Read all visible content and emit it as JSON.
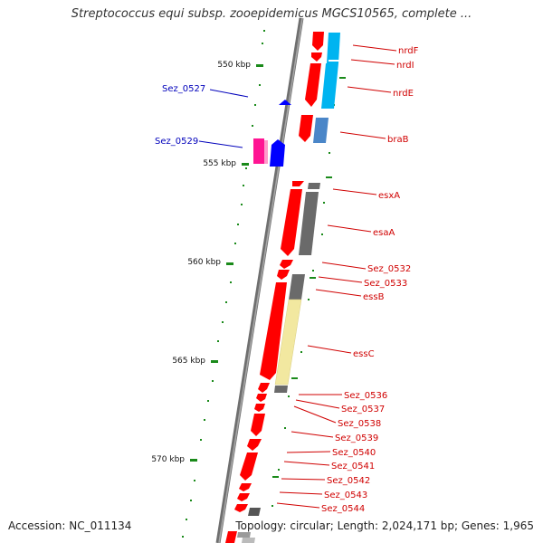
{
  "header": {
    "title": "Streptococcus equi subsp. zooepidemicus MGCS10565, complete ..."
  },
  "footer": {
    "accession": "Accession: NC_011134",
    "summary": "Topology: circular; Length: 2,024,171 bp; Genes: 1,965"
  },
  "colors": {
    "gene_red": "#ff0000",
    "gene_blue": "#0000ff",
    "gene_cyan": "#00b4f0",
    "gene_steel": "#4a86c8",
    "gene_gray": "#6a6a6a",
    "gene_yellow": "#f2e8a0",
    "gene_magenta": "#ff1493",
    "tick_green": "#1a8a1a",
    "label_red": "#d00000",
    "label_blue": "#0000bb",
    "backbone": "#7a7a7a"
  },
  "scale": {
    "ticks": [
      {
        "label": "550 kbp"
      },
      {
        "label": "555 kbp"
      },
      {
        "label": "560 kbp"
      },
      {
        "label": "565 kbp"
      },
      {
        "label": "570 kbp"
      }
    ]
  },
  "genes": [
    {
      "label": "nrdF"
    },
    {
      "label": "nrdI"
    },
    {
      "label": "nrdE"
    },
    {
      "label": "Sez_0527"
    },
    {
      "label": "braB"
    },
    {
      "label": "Sez_0529"
    },
    {
      "label": "esxA"
    },
    {
      "label": "esaA"
    },
    {
      "label": "Sez_0532"
    },
    {
      "label": "Sez_0533"
    },
    {
      "label": "essB"
    },
    {
      "label": "essC"
    },
    {
      "label": "Sez_0536"
    },
    {
      "label": "Sez_0537"
    },
    {
      "label": "Sez_0538"
    },
    {
      "label": "Sez_0539"
    },
    {
      "label": "Sez_0540"
    },
    {
      "label": "Sez_0541"
    },
    {
      "label": "Sez_0542"
    },
    {
      "label": "Sez_0543"
    },
    {
      "label": "Sez_0544"
    }
  ]
}
